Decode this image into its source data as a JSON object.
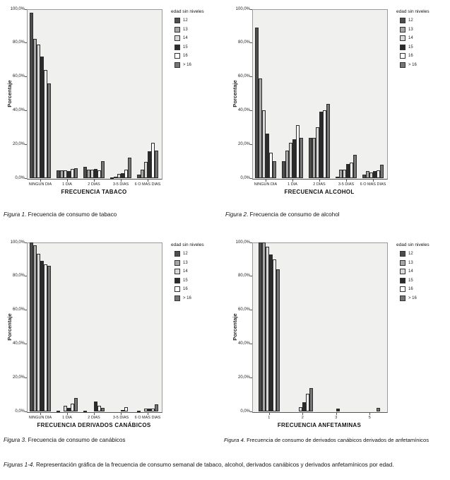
{
  "legend": {
    "title": "edad sin niveles",
    "entries": [
      "12",
      "13",
      "14",
      "15",
      "16",
      "> 16"
    ],
    "colors": [
      "#4d4d4d",
      "#a6a6a6",
      "#d9d9d9",
      "#2b2b2b",
      "#ffffff",
      "#757575"
    ]
  },
  "chart_data": [
    {
      "type": "bar",
      "xlabel": "FRECUENCIA TABACO",
      "ylabel": "Porcentaje",
      "ylim": [
        0,
        100
      ],
      "yticks": [
        "0,0%",
        "20,0%",
        "40,0%",
        "60,0%",
        "80,0%",
        "100,0%"
      ],
      "legend_title": "edad sin niveles",
      "categories": [
        "NINGUN DIA",
        "1 DIA",
        "2 DIAS",
        "3-5 DIAS",
        "6 O MAS DIAS"
      ],
      "series": [
        {
          "name": "12",
          "values": [
            98,
            4.5,
            6.5,
            0.5,
            2
          ]
        },
        {
          "name": "13",
          "values": [
            82.5,
            4.5,
            5,
            1,
            5
          ]
        },
        {
          "name": "14",
          "values": [
            79,
            4.5,
            5,
            2.5,
            9.5
          ]
        },
        {
          "name": "15",
          "values": [
            72,
            4,
            5.5,
            3,
            16
          ]
        },
        {
          "name": "16",
          "values": [
            64,
            5.5,
            4.5,
            5,
            21
          ]
        },
        {
          "name": "> 16",
          "values": [
            56,
            6,
            10,
            12,
            16.5
          ]
        }
      ]
    },
    {
      "type": "bar",
      "xlabel": "FRECUENCIA ALCOHOL",
      "ylabel": "Porcentaje",
      "ylim": [
        0,
        100
      ],
      "yticks": [
        "0,0%",
        "20,0%",
        "40,0%",
        "60,0%",
        "80,0%",
        "100,0%"
      ],
      "legend_title": "edad sin niveles",
      "categories": [
        "NINGUN DIA",
        "1 DIA",
        "2 DIAS",
        "3-5 DIAS",
        "6 O MAS DIAS"
      ],
      "series": [
        {
          "name": "12",
          "values": [
            89,
            10,
            24,
            1,
            2
          ]
        },
        {
          "name": "13",
          "values": [
            59,
            16.5,
            24,
            5,
            4
          ]
        },
        {
          "name": "14",
          "values": [
            40,
            21,
            30,
            5,
            3.5
          ]
        },
        {
          "name": "15",
          "values": [
            26.5,
            23,
            39.5,
            8.5,
            4
          ]
        },
        {
          "name": "16",
          "values": [
            15,
            31.5,
            40,
            9,
            4.5
          ]
        },
        {
          "name": "> 16",
          "values": [
            10,
            24,
            44,
            14,
            8
          ]
        }
      ]
    },
    {
      "type": "bar",
      "xlabel": "FRECUENCIA DERIVADOS CANÁBICOS",
      "ylabel": "Porcentaje",
      "ylim": [
        0,
        100
      ],
      "yticks": [
        "0,0%",
        "20,0%",
        "40,0%",
        "60,0%",
        "80,0%",
        "100,0%"
      ],
      "legend_title": "edad sin niveles",
      "categories": [
        "NINGUN DIA",
        "1 DIA",
        "2 DIAS",
        "3-5 DIAS",
        "6 O MAS DIAS"
      ],
      "series": [
        {
          "name": "12",
          "values": [
            100,
            0.5,
            0.5,
            0,
            0.5
          ]
        },
        {
          "name": "13",
          "values": [
            98.5,
            0,
            0,
            0,
            0
          ]
        },
        {
          "name": "14",
          "values": [
            93.5,
            3.5,
            0,
            0,
            1.5
          ]
        },
        {
          "name": "15",
          "values": [
            89,
            2,
            6,
            1,
            1.5
          ]
        },
        {
          "name": "16",
          "values": [
            87,
            4.5,
            3.5,
            2.5,
            1.5
          ]
        },
        {
          "name": "> 16",
          "values": [
            86,
            8,
            2,
            0,
            4
          ]
        }
      ]
    },
    {
      "type": "bar",
      "xlabel": "FRECUENCIA ANFETAMINAS",
      "ylabel": "Porcentaje",
      "ylim": [
        0,
        100
      ],
      "yticks": [
        "0,0%",
        "20,0%",
        "40,0%",
        "60,0%",
        "80,0%",
        "100,0%"
      ],
      "legend_title": "edad sin niveles",
      "categories": [
        "1",
        "2",
        "3",
        "5"
      ],
      "series": [
        {
          "name": "12",
          "values": [
            100,
            0,
            0,
            0
          ]
        },
        {
          "name": "13",
          "values": [
            100,
            0,
            0,
            0
          ]
        },
        {
          "name": "14",
          "values": [
            97.5,
            2.5,
            0,
            0
          ]
        },
        {
          "name": "15",
          "values": [
            93,
            5.5,
            1.5,
            0
          ]
        },
        {
          "name": "16",
          "values": [
            90,
            10.5,
            0,
            0
          ]
        },
        {
          "name": "> 16",
          "values": [
            84,
            14,
            0,
            2
          ]
        }
      ]
    }
  ],
  "captions": [
    {
      "label": "Figura 1",
      "text": ". Frecuencia de consumo de tabaco"
    },
    {
      "label": "Figura 2",
      "text": ". Frecuencia de consumo de alcohol"
    },
    {
      "label": "Figura 3",
      "text": ". Frecuencia de consumo de canábicos"
    },
    {
      "label": "Figura 4",
      "text": ". Frecuencia de consumo de derivados canábicos derivados de anfetamínicos"
    },
    {
      "label": "Figuras 1-4",
      "text": ". Representación gráfica de la frecuencia de consumo semanal de tabaco, alcohol, derivados canábicos y derivados anfetamínicos por edad."
    }
  ]
}
